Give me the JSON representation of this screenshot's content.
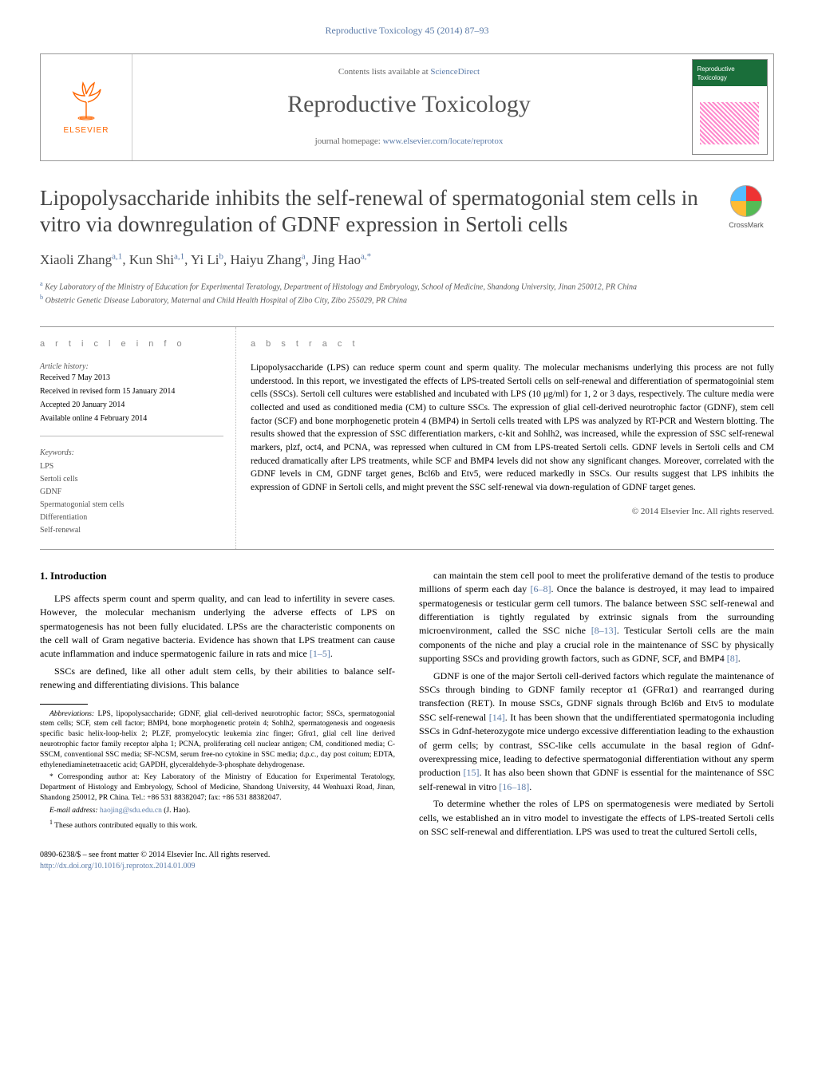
{
  "journal_ref": "Reproductive Toxicology 45 (2014) 87–93",
  "header": {
    "contents_prefix": "Contents lists available at ",
    "contents_linktext": "ScienceDirect",
    "journal_name": "Reproductive Toxicology",
    "homepage_prefix": "journal homepage: ",
    "homepage_linktext": "www.elsevier.com/locate/reprotox",
    "publisher_logo_text": "ELSEVIER",
    "cover_title": "Reproductive Toxicology"
  },
  "crossmark_label": "CrossMark",
  "title": "Lipopolysaccharide inhibits the self-renewal of spermatogonial stem cells in vitro via downregulation of GDNF expression in Sertoli cells",
  "authors_html": "Xiaoli Zhang<sup>a,1</sup>, Kun Shi<sup>a,1</sup>, Yi Li<sup>b</sup>, Haiyu Zhang<sup>a</sup>, Jing Hao<sup>a,*</sup>",
  "affiliations": [
    {
      "sup": "a",
      "text": "Key Laboratory of the Ministry of Education for Experimental Teratology, Department of Histology and Embryology, School of Medicine, Shandong University, Jinan 250012, PR China"
    },
    {
      "sup": "b",
      "text": "Obstetric Genetic Disease Laboratory, Maternal and Child Health Hospital of Zibo City, Zibo 255029, PR China"
    }
  ],
  "article_info_header": "a r t i c l e   i n f o",
  "history": {
    "heading": "Article history:",
    "received": "Received 7 May 2013",
    "revised": "Received in revised form 15 January 2014",
    "accepted": "Accepted 20 January 2014",
    "online": "Available online 4 February 2014"
  },
  "keywords_heading": "Keywords:",
  "keywords": [
    "LPS",
    "Sertoli cells",
    "GDNF",
    "Spermatogonial stem cells",
    "Differentiation",
    "Self-renewal"
  ],
  "abstract_header": "a b s t r a c t",
  "abstract": "Lipopolysaccharide (LPS) can reduce sperm count and sperm quality. The molecular mechanisms underlying this process are not fully understood. In this report, we investigated the effects of LPS-treated Sertoli cells on self-renewal and differentiation of spermatogoinial stem cells (SSCs). Sertoli cell cultures were established and incubated with LPS (10 μg/ml) for 1, 2 or 3 days, respectively. The culture media were collected and used as conditioned media (CM) to culture SSCs. The expression of glial cell-derived neurotrophic factor (GDNF), stem cell factor (SCF) and bone morphogenetic protein 4 (BMP4) in Sertoli cells treated with LPS was analyzed by RT-PCR and Western blotting. The results showed that the expression of SSC differentiation markers, c-kit and Sohlh2, was increased, while the expression of SSC self-renewal markers, plzf, oct4, and PCNA, was repressed when cultured in CM from LPS-treated Sertoli cells. GDNF levels in Sertoli cells and CM reduced dramatically after LPS treatments, while SCF and BMP4 levels did not show any significant changes. Moreover, correlated with the GDNF levels in CM, GDNF target genes, Bcl6b and Etv5, were reduced markedly in SSCs. Our results suggest that LPS inhibits the expression of GDNF in Sertoli cells, and might prevent the SSC self-renewal via down-regulation of GDNF target genes.",
  "copyright": "© 2014 Elsevier Inc. All rights reserved.",
  "body": {
    "intro_heading": "1. Introduction",
    "p1": "LPS affects sperm count and sperm quality, and can lead to infertility in severe cases. However, the molecular mechanism underlying the adverse effects of LPS on spermatogenesis has not been fully elucidated. LPSs are the characteristic components on the cell wall of Gram negative bacteria. Evidence has shown that LPS treatment can cause acute inflammation and induce spermatogenic failure in rats and mice ",
    "p1_ref": "[1–5]",
    "p2": "SSCs are defined, like all other adult stem cells, by their abilities to balance self-renewing and differentiating divisions. This balance ",
    "p3a": "can maintain the stem cell pool to meet the proliferative demand of the testis to produce millions of sperm each day ",
    "p3_ref1": "[6–8]",
    "p3b": ". Once the balance is destroyed, it may lead to impaired spermatogenesis or testicular germ cell tumors. The balance between SSC self-renewal and differentiation is tightly regulated by extrinsic signals from the surrounding microenvironment, called the SSC niche ",
    "p3_ref2": "[8–13]",
    "p3c": ". Testicular Sertoli cells are the main components of the niche and play a crucial role in the maintenance of SSC by physically supporting SSCs and providing growth factors, such as GDNF, SCF, and BMP4 ",
    "p3_ref3": "[8]",
    "p4a": "GDNF is one of the major Sertoli cell-derived factors which regulate the maintenance of SSCs through binding to GDNF family receptor α1 (GFRα1) and rearranged during transfection (RET). In mouse SSCs, GDNF signals through Bcl6b and Etv5 to modulate SSC self-renewal ",
    "p4_ref1": "[14]",
    "p4b": ". It has been shown that the undifferentiated spermatogonia including SSCs in Gdnf-heterozygote mice undergo excessive differentiation leading to the exhaustion of germ cells; by contrast, SSC-like cells accumulate in the basal region of Gdnf-overexpressing mice, leading to defective spermatogonial differentiation without any sperm production ",
    "p4_ref2": "[15]",
    "p4c": ". It has also been shown that GDNF is essential for the maintenance of SSC self-renewal in vitro ",
    "p4_ref3": "[16–18]",
    "p5": "To determine whether the roles of LPS on spermatogenesis were mediated by Sertoli cells, we established an in vitro model to investigate the effects of LPS-treated Sertoli cells on SSC self-renewal and differentiation. LPS was used to treat the cultured Sertoli cells,"
  },
  "footnotes": {
    "abbrev_label": "Abbreviations:",
    "abbrev_text": " LPS, lipopolysaccharide; GDNF, glial cell-derived neurotrophic factor; SSCs, spermatogonial stem cells; SCF, stem cell factor; BMP4, bone morphogenetic protein 4; Sohlh2, spermatogenesis and oogenesis specific basic helix-loop-helix 2; PLZF, promyelocytic leukemia zinc finger; Gfrα1, glial cell line derived neurotrophic factor family receptor alpha 1; PCNA, proliferating cell nuclear antigen; CM, conditioned media; C-SSCM, conventional SSC media; SF-NCSM, serum free-no cytokine in SSC media; d.p.c., day post coitum; EDTA, ethylenediaminetetraacetic acid; GAPDH, glyceraldehyde-3-phosphate dehydrogenase.",
    "corr_label": "* Corresponding author at:",
    "corr_text": " Key Laboratory of the Ministry of Education for Experimental Teratology, Department of Histology and Embryology, School of Medicine, Shandong University, 44 Wenhuaxi Road, Jinan, Shandong 250012, PR China. Tel.: +86 531 88382047; fax: +86 531 88382047.",
    "email_label": "E-mail address: ",
    "email_link": "haojing@sdu.edu.cn",
    "email_suffix": " (J. Hao).",
    "contrib": "These authors contributed equally to this work.",
    "contrib_sup": "1"
  },
  "doi": {
    "issn_line": "0890-6238/$ – see front matter © 2014 Elsevier Inc. All rights reserved.",
    "doi_link": "http://dx.doi.org/10.1016/j.reprotox.2014.01.009"
  },
  "colors": {
    "link": "#5b7ba8",
    "accent_orange": "#f60",
    "cover_green": "#1a6e3a"
  }
}
